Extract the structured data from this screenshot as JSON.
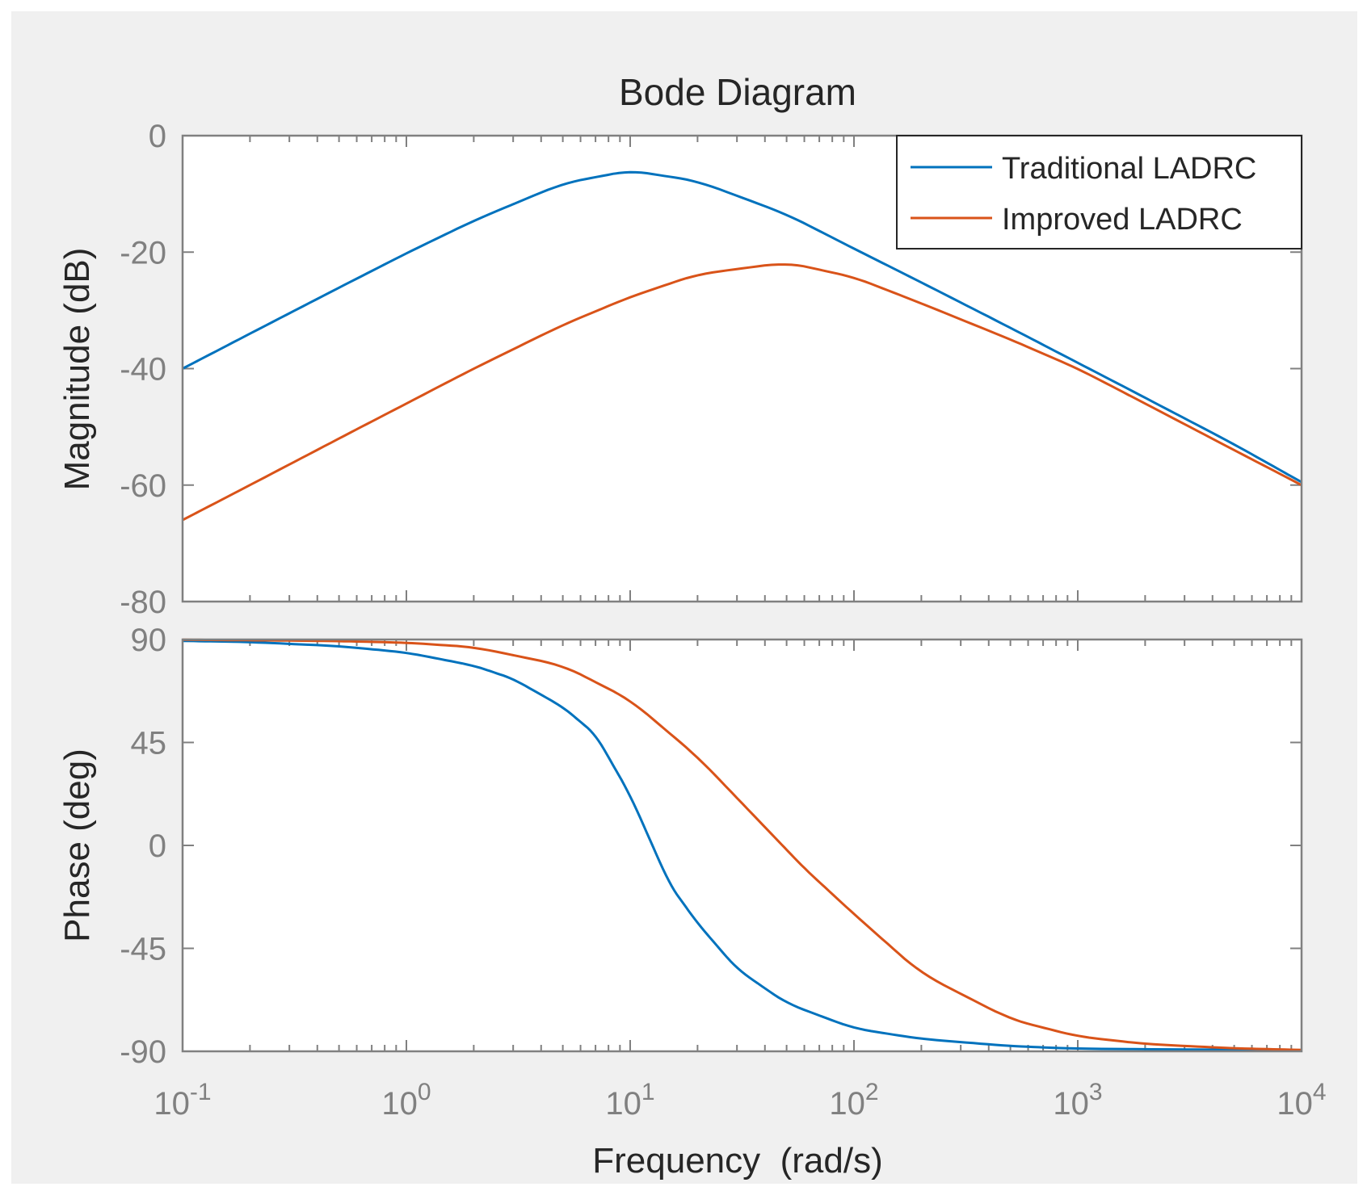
{
  "chart_data": {
    "type": "line",
    "title": "Bode Diagram",
    "xlabel": "Frequency  (rad/s)",
    "xscale": "log",
    "xlim": [
      0.1,
      10000
    ],
    "x_ticks": [
      {
        "value": 0.1,
        "base": "10",
        "exp": "-1"
      },
      {
        "value": 1,
        "base": "10",
        "exp": "0"
      },
      {
        "value": 10,
        "base": "10",
        "exp": "1"
      },
      {
        "value": 100,
        "base": "10",
        "exp": "2"
      },
      {
        "value": 1000,
        "base": "10",
        "exp": "3"
      },
      {
        "value": 10000,
        "base": "10",
        "exp": "4"
      }
    ],
    "legend": {
      "location": "top-right",
      "entries": [
        "Traditional LADRC",
        "Improved LADRC"
      ]
    },
    "colors": {
      "traditional": "#0072bd",
      "improved": "#d95319",
      "axes": "#808080",
      "text": "#262626",
      "figure_bg": "#f0f0f0",
      "axes_bg": "#ffffff"
    },
    "subplots": [
      {
        "ylabel": "Magnitude (dB)",
        "ylim": [
          -80,
          0
        ],
        "yticks": [
          0,
          -20,
          -40,
          -60,
          -80
        ],
        "series": [
          {
            "name": "Traditional LADRC",
            "x": [
              0.1,
              0.2,
              0.5,
              1,
              2,
              5,
              10,
              20,
              50,
              100,
              200,
              500,
              1000,
              2000,
              5000,
              10000
            ],
            "values": [
              -40,
              -34,
              -26.1,
              -20.2,
              -14.6,
              -8.2,
              -6.0,
              -7.8,
              -13.5,
              -19.4,
              -25.2,
              -33,
              -39,
              -45,
              -53,
              -59.5
            ]
          },
          {
            "name": "Improved LADRC",
            "x": [
              0.1,
              0.2,
              0.5,
              1,
              2,
              5,
              10,
              20,
              50,
              100,
              200,
              500,
              1000,
              2000,
              5000,
              10000
            ],
            "values": [
              -66,
              -60,
              -52,
              -46,
              -40,
              -32.5,
              -27.7,
              -23.8,
              -21.8,
              -24.3,
              -28.8,
              -35,
              -40,
              -46,
              -54,
              -60
            ]
          }
        ]
      },
      {
        "ylabel": "Phase (deg)",
        "ylim": [
          -90,
          90
        ],
        "yticks": [
          90,
          45,
          0,
          -45,
          -90
        ],
        "series": [
          {
            "name": "Traditional LADRC",
            "x": [
              0.1,
              0.2,
              0.5,
              1,
              2,
              3,
              5,
              7,
              10,
              15,
              20,
              30,
              50,
              100,
              200,
              500,
              1000,
              10000
            ],
            "values": [
              89.4,
              88.9,
              87.1,
              84.3,
              78.6,
              72.8,
              60.5,
              48.5,
              22,
              -17,
              -34,
              -54,
              -69,
              -80,
              -84.6,
              -87.7,
              -88.9,
              -89.5
            ]
          },
          {
            "name": "Improved LADRC",
            "x": [
              0.1,
              0.2,
              0.5,
              1,
              2,
              5,
              10,
              20,
              40,
              60,
              100,
              200,
              500,
              1000,
              2000,
              5000,
              10000
            ],
            "values": [
              89.9,
              89.7,
              89.3,
              88.6,
              86.7,
              78.7,
              63.6,
              38.7,
              8,
              -10,
              -30,
              -56,
              -76,
              -83.5,
              -86.8,
              -88.7,
              -89.4
            ]
          }
        ]
      }
    ]
  }
}
